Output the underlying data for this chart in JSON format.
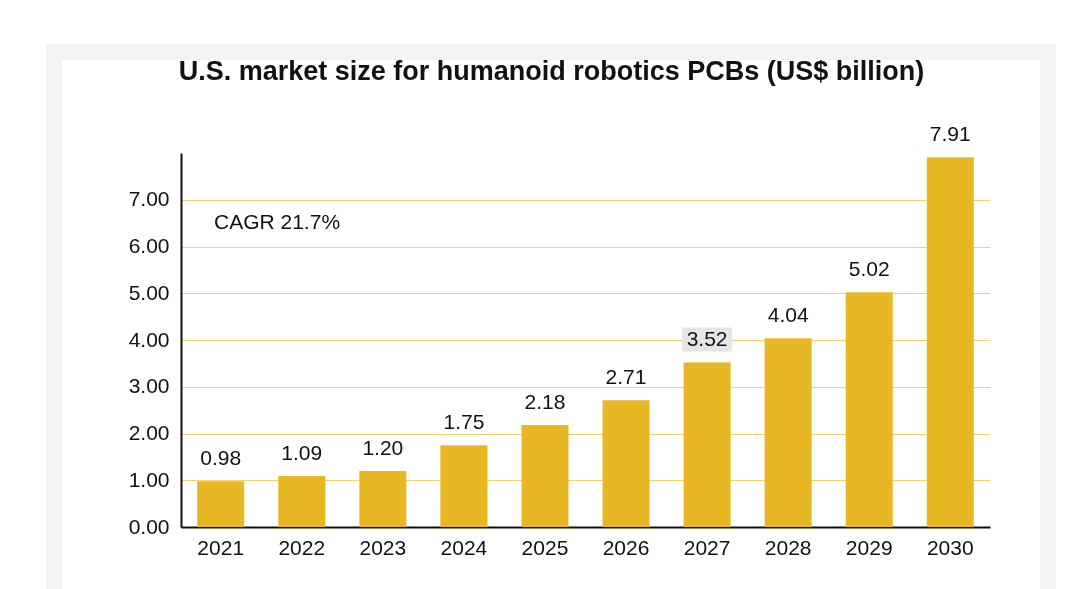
{
  "chart_data": {
    "type": "bar",
    "title": "U.S. market size for humanoid robotics PCBs (US$ billion)",
    "categories": [
      "2021",
      "2022",
      "2023",
      "2024",
      "2025",
      "2026",
      "2027",
      "2028",
      "2029",
      "2030"
    ],
    "values": [
      0.98,
      1.09,
      1.2,
      1.75,
      2.18,
      2.71,
      3.52,
      4.04,
      5.02,
      7.91
    ],
    "value_labels": [
      "0.98",
      "1.09",
      "1.20",
      "1.75",
      "2.18",
      "2.71",
      "3.52",
      "4.04",
      "5.02",
      "7.91"
    ],
    "color": "#e8b824",
    "ylim": [
      0,
      8
    ],
    "yticks": [
      {
        "value": 0,
        "label": "0.00"
      },
      {
        "value": 1,
        "label": "1.00"
      },
      {
        "value": 2,
        "label": "2.00"
      },
      {
        "value": 3,
        "label": "3.00"
      },
      {
        "value": 4,
        "label": "4.00"
      },
      {
        "value": 5,
        "label": "5.00"
      },
      {
        "value": 6,
        "label": "6.00"
      },
      {
        "value": 7,
        "label": "7.00"
      }
    ],
    "grid": "y",
    "annotations": [
      "CAGR 21.7%"
    ]
  }
}
